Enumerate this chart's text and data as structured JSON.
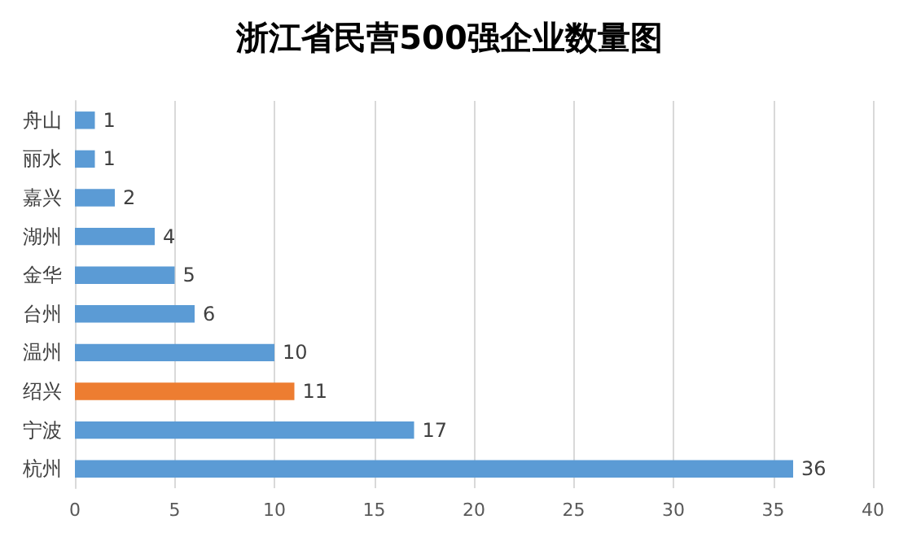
{
  "chart_data": {
    "type": "bar",
    "title": "浙江省民营500强企业数量图",
    "orientation": "horizontal",
    "categories": [
      "舟山",
      "丽水",
      "嘉兴",
      "湖州",
      "金华",
      "台州",
      "温州",
      "绍兴",
      "宁波",
      "杭州"
    ],
    "values": [
      1,
      1,
      2,
      4,
      5,
      6,
      10,
      11,
      17,
      36
    ],
    "colors": [
      "#5b9bd5",
      "#5b9bd5",
      "#5b9bd5",
      "#5b9bd5",
      "#5b9bd5",
      "#5b9bd5",
      "#5b9bd5",
      "#ed7d31",
      "#5b9bd5",
      "#5b9bd5"
    ],
    "xlim": [
      0,
      40
    ],
    "xticks": [
      0,
      5,
      10,
      15,
      20,
      25,
      30,
      35,
      40
    ],
    "grid": "x",
    "data_labels": true
  }
}
